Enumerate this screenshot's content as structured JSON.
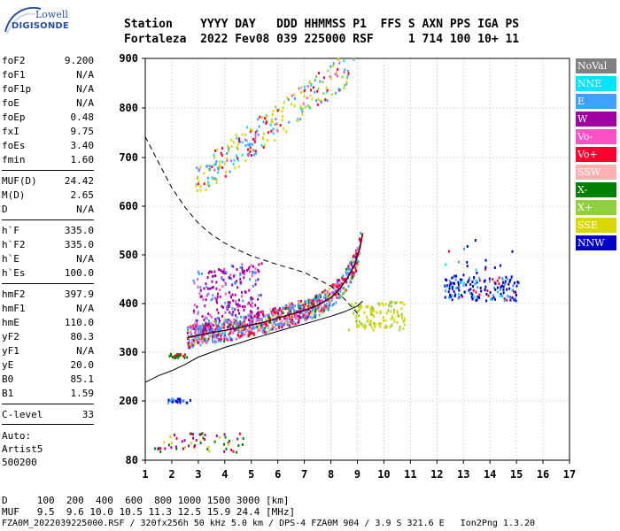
{
  "logo": {
    "top": "Lowell",
    "bottom": "DIGISONDE"
  },
  "header": {
    "row1": "Station    YYYY DAY   DDD HHMMSS P1  FFS S AXN PPS IGA PS",
    "row2": "Fortaleza  2022 Fev08 039 225000 RSF     1 714 100 10+ 11"
  },
  "params": [
    {
      "label": "foF2",
      "value": "9.200"
    },
    {
      "label": "foF1",
      "value": "N/A"
    },
    {
      "label": "foF1p",
      "value": "N/A"
    },
    {
      "label": "foE",
      "value": "N/A"
    },
    {
      "label": "foEp",
      "value": "0.48"
    },
    {
      "label": "fxI",
      "value": "9.75"
    },
    {
      "label": "foEs",
      "value": "3.40"
    },
    {
      "label": "fmin",
      "value": "1.60"
    },
    {
      "label": "MUF(D)",
      "value": "24.42"
    },
    {
      "label": "M(D)",
      "value": "2.65"
    },
    {
      "label": "D",
      "value": "N/A"
    },
    {
      "label": "h`F",
      "value": "335.0"
    },
    {
      "label": "h`F2",
      "value": "335.0"
    },
    {
      "label": "h`E",
      "value": "N/A"
    },
    {
      "label": "h`Es",
      "value": "100.0"
    },
    {
      "label": "hmF2",
      "value": "397.9"
    },
    {
      "label": "hmF1",
      "value": "N/A"
    },
    {
      "label": "hmE",
      "value": "110.0"
    },
    {
      "label": "yF2",
      "value": "80.3"
    },
    {
      "label": "yF1",
      "value": "N/A"
    },
    {
      "label": "yE",
      "value": "20.0"
    },
    {
      "label": "B0",
      "value": "85.1"
    },
    {
      "label": "B1",
      "value": "1.59"
    },
    {
      "label": "C-level",
      "value": "33"
    }
  ],
  "notes": {
    "auto": "Auto:",
    "artist": "Artist5",
    "version": "500200"
  },
  "legend": [
    {
      "label": "NoVal",
      "bg": "#808080",
      "fg": "#ffffff"
    },
    {
      "label": "NNE",
      "bg": "#00e5ff",
      "fg": "#ffffff"
    },
    {
      "label": "E",
      "bg": "#3fa0ff",
      "fg": "#ffffff"
    },
    {
      "label": "W",
      "bg": "#a000a0",
      "fg": "#ffffff"
    },
    {
      "label": "Vo-",
      "bg": "#ff50c8",
      "fg": "#ffffff"
    },
    {
      "label": "Vo+",
      "bg": "#ff0030",
      "fg": "#ffffff"
    },
    {
      "label": "SSW",
      "bg": "#ffb0b0",
      "fg": "#ffffff"
    },
    {
      "label": "X-",
      "bg": "#008000",
      "fg": "#ffffff"
    },
    {
      "label": "X+",
      "bg": "#90d040",
      "fg": "#ffffff"
    },
    {
      "label": "SSE",
      "bg": "#d8d800",
      "fg": "#ffffff"
    },
    {
      "label": "NNW",
      "bg": "#0000c8",
      "fg": "#ffffff"
    }
  ],
  "footer": {
    "d_row": "D     100  200  400  600  800 1000 1500 3000 [km]",
    "muf_row": "MUF   9.5  9.6 10.0 10.5 11.3 12.5 15.9 24.4 [MHz]",
    "file_row": "FZA0M_2022039225000.RSF / 320fx256h 50 kHz 5.0 km / DPS-4 FZA0M 904 / 3.9 S 321.6 E   Ion2Png 1.3.20"
  },
  "chart_data": {
    "type": "scatter",
    "x_range": [
      1,
      17
    ],
    "y_range": [
      80,
      900
    ],
    "x_ticks": [
      1,
      2,
      3,
      4,
      5,
      6,
      7,
      8,
      9,
      10,
      11,
      12,
      13,
      14,
      15,
      16,
      17
    ],
    "y_ticks": [
      80,
      200,
      300,
      400,
      500,
      600,
      700,
      800,
      900
    ],
    "grid": true,
    "legend_position": "right",
    "profile_curve": [
      [
        1.0,
        238
      ],
      [
        1.5,
        252
      ],
      [
        2.0,
        262
      ],
      [
        2.5,
        275
      ],
      [
        3.0,
        290
      ],
      [
        3.5,
        300
      ],
      [
        4.0,
        310
      ],
      [
        4.5,
        318
      ],
      [
        5.0,
        327
      ],
      [
        5.5,
        335
      ],
      [
        6.0,
        343
      ],
      [
        6.5,
        351
      ],
      [
        7.0,
        358
      ],
      [
        7.5,
        366
      ],
      [
        8.0,
        374
      ],
      [
        8.5,
        383
      ],
      [
        9.0,
        395
      ],
      [
        9.2,
        405
      ]
    ],
    "virtual_height_trace": [
      [
        2.6,
        330
      ],
      [
        3.0,
        335
      ],
      [
        3.5,
        340
      ],
      [
        4.0,
        345
      ],
      [
        4.5,
        350
      ],
      [
        5.0,
        356
      ],
      [
        5.5,
        362
      ],
      [
        6.0,
        370
      ],
      [
        6.5,
        378
      ],
      [
        7.0,
        386
      ],
      [
        7.5,
        396
      ],
      [
        8.0,
        412
      ],
      [
        8.3,
        428
      ],
      [
        8.6,
        450
      ],
      [
        8.9,
        480
      ],
      [
        9.1,
        515
      ],
      [
        9.2,
        545
      ]
    ],
    "dashed_curve": [
      [
        1.0,
        742
      ],
      [
        1.5,
        690
      ],
      [
        2.0,
        638
      ],
      [
        2.5,
        598
      ],
      [
        3.0,
        565
      ],
      [
        3.5,
        542
      ],
      [
        4.0,
        524
      ],
      [
        4.5,
        510
      ],
      [
        5.0,
        498
      ],
      [
        5.5,
        489
      ],
      [
        6.0,
        480
      ],
      [
        6.5,
        472
      ],
      [
        7.0,
        464
      ],
      [
        7.5,
        450
      ],
      [
        8.0,
        436
      ],
      [
        8.5,
        410
      ],
      [
        9.0,
        380
      ]
    ]
  }
}
